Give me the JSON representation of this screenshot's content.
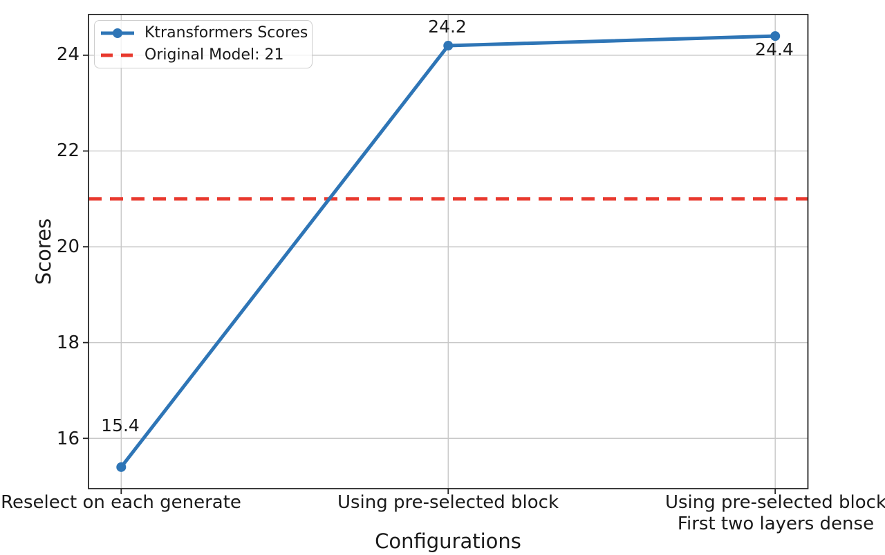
{
  "chart_data": {
    "type": "line",
    "title": "",
    "xlabel": "Configurations",
    "ylabel": "Scores",
    "categories": [
      "Reselect on each generate",
      "Using pre-selected block",
      "Using pre-selected block\nFirst two layers dense"
    ],
    "xtick_lines": [
      [
        "Reselect on each generate"
      ],
      [
        "Using pre-selected block"
      ],
      [
        "Using pre-selected block",
        "First two layers dense"
      ]
    ],
    "series": [
      {
        "name": "Ktransformers Scores",
        "values": [
          15.4,
          24.2,
          24.4
        ],
        "color": "#2e75b6",
        "marker": "circle",
        "line_style": "solid"
      }
    ],
    "reference_line": {
      "name": "Original Model: 21",
      "value": 21,
      "color": "#e8392e",
      "line_style": "dashed"
    },
    "point_labels": [
      "15.4",
      "24.2",
      "24.4"
    ],
    "yticks": [
      24,
      22,
      20,
      18,
      16
    ],
    "ylim": [
      14.95,
      24.85
    ],
    "xlim": [
      -0.1,
      2.1
    ],
    "grid": true,
    "legend": {
      "position": "upper-left",
      "entries": [
        "Ktransformers Scores",
        "Original Model: 21"
      ]
    }
  },
  "colors": {
    "grid": "#c8c8c8",
    "axis": "#262626",
    "text": "#1a1a1a",
    "background": "#ffffff"
  }
}
